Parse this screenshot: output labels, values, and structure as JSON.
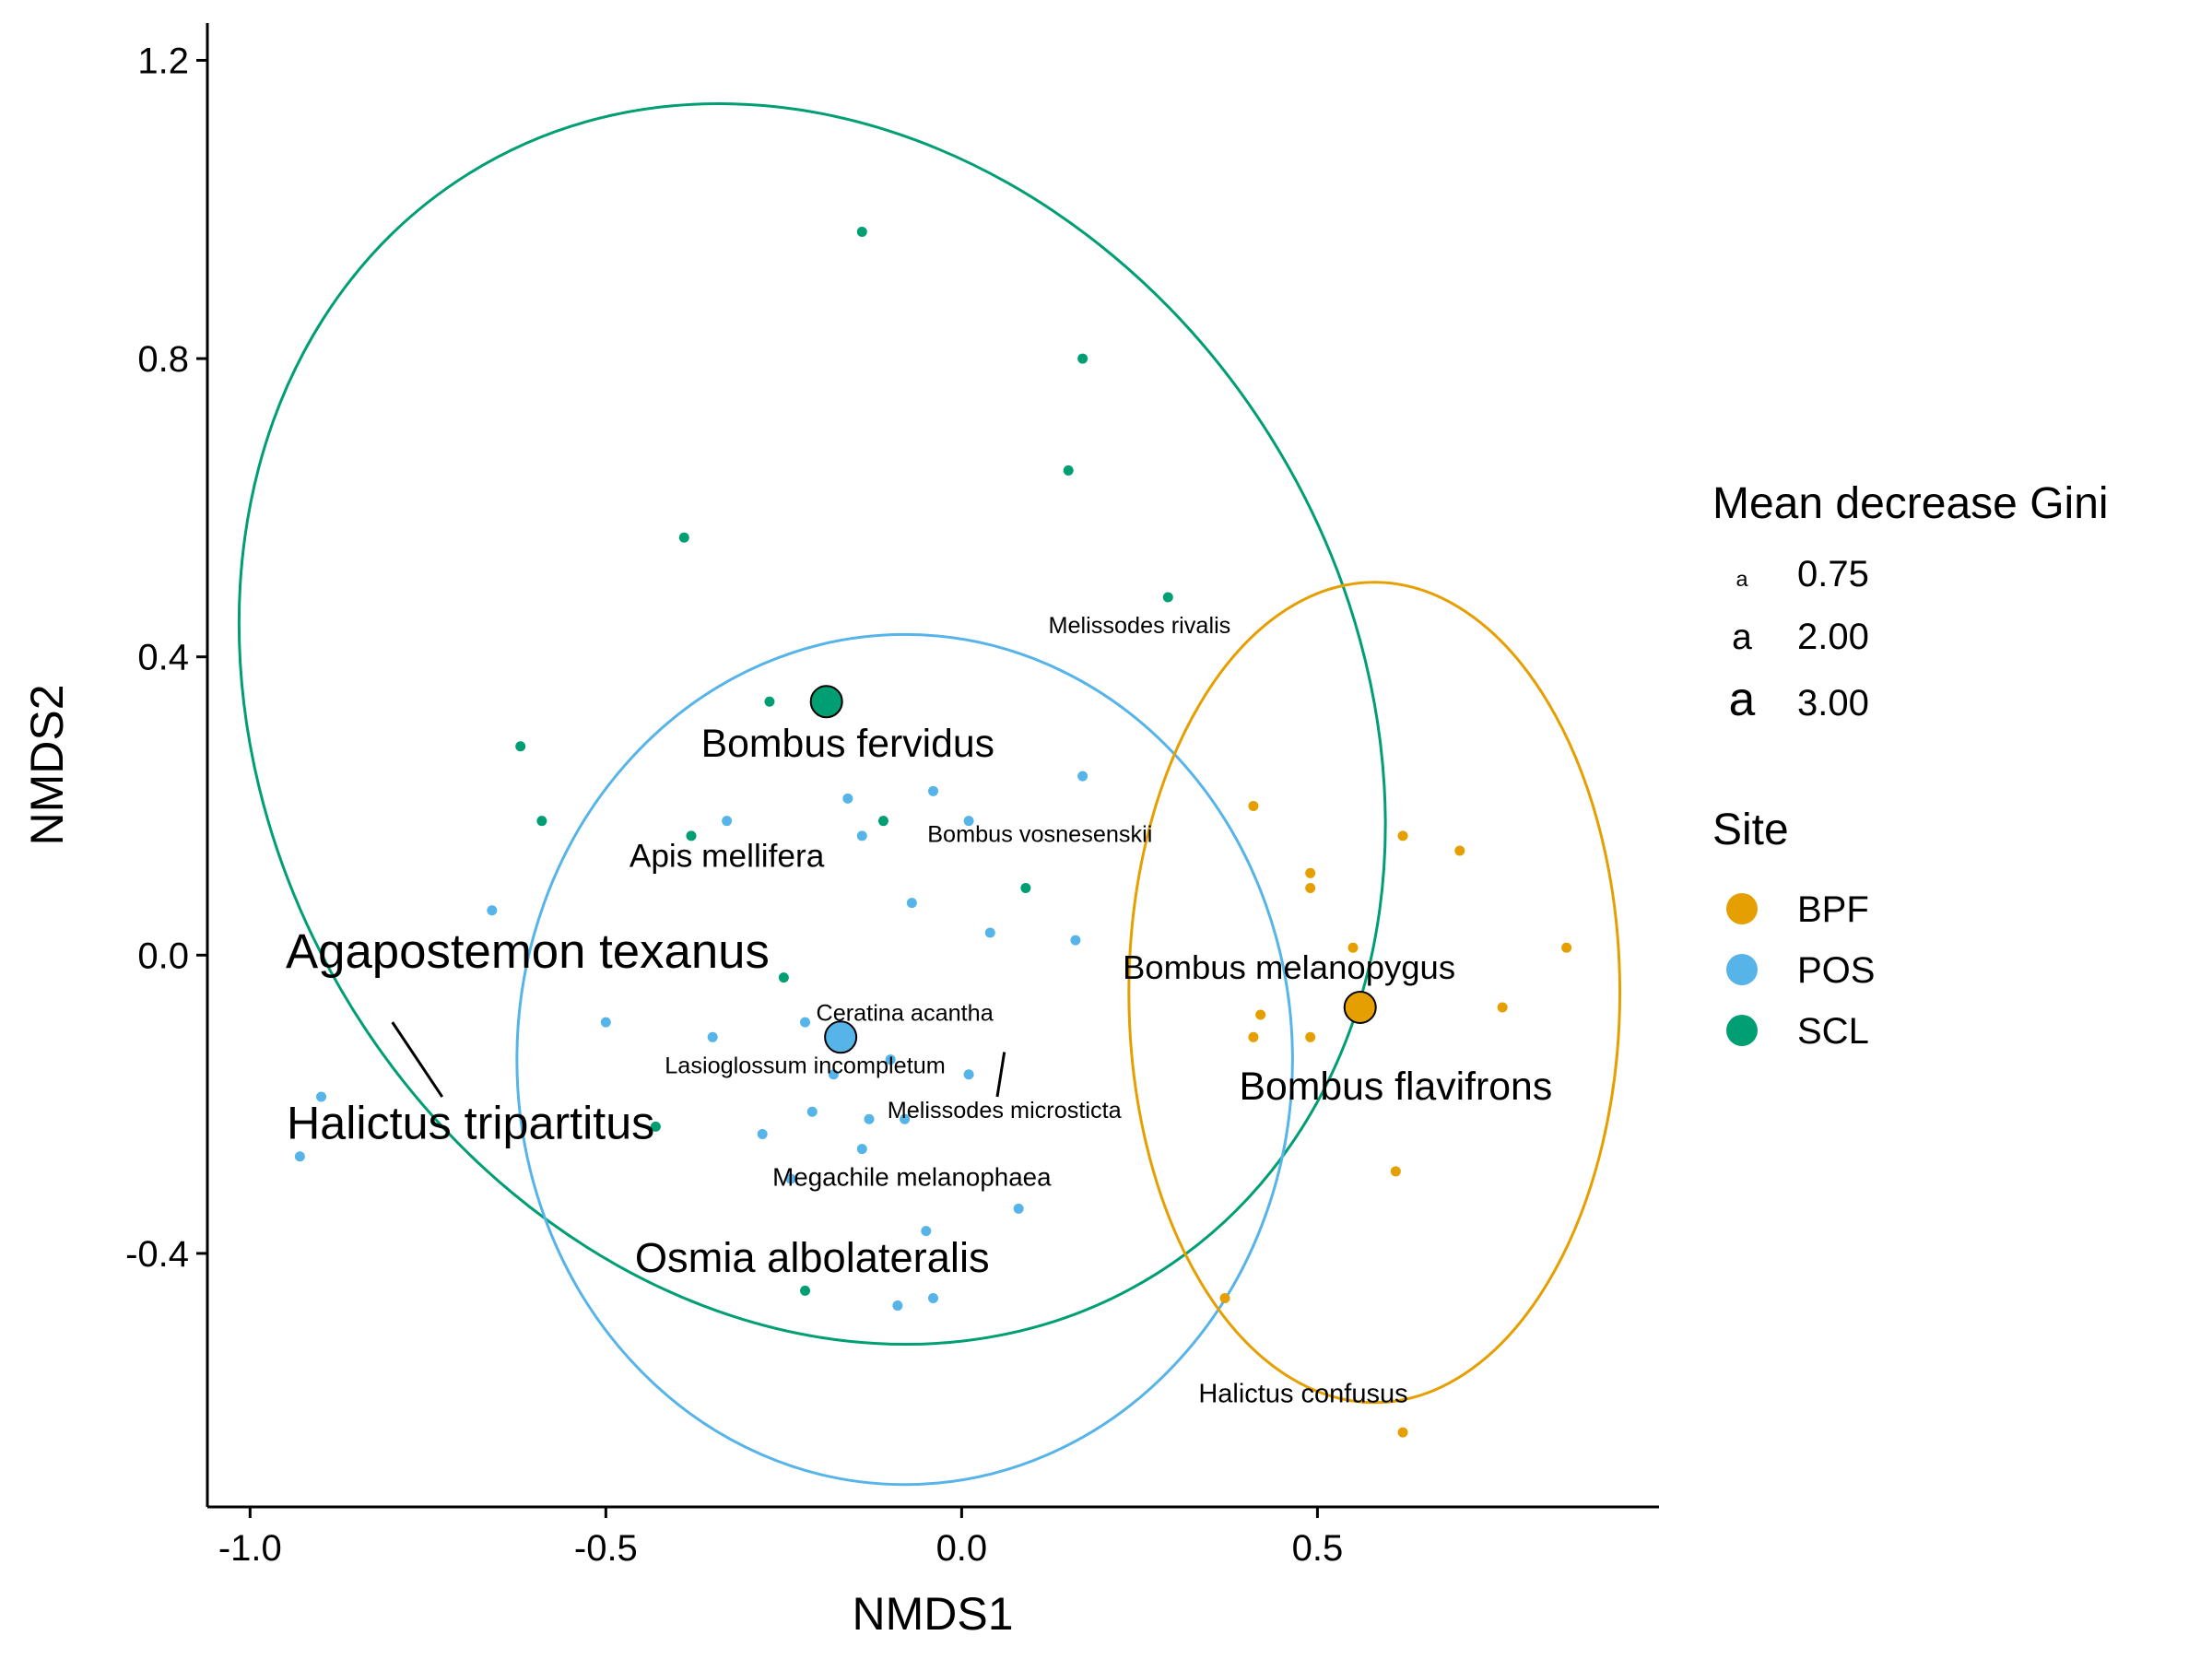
{
  "chart_data": {
    "type": "scatter",
    "title": "",
    "xlabel": "NMDS1",
    "ylabel": "NMDS2",
    "xlim": [
      -1.06,
      0.98
    ],
    "ylim": [
      -0.74,
      1.25
    ],
    "x_ticks": [
      -1.0,
      -0.5,
      0.0,
      0.5
    ],
    "x_tick_labels": [
      "-1.0",
      "-0.5",
      "0.0",
      "0.5"
    ],
    "y_ticks": [
      -0.4,
      0.0,
      0.4,
      0.8,
      1.2
    ],
    "y_tick_labels": [
      "-0.4",
      "0.0",
      "0.4",
      "0.8",
      "1.2"
    ],
    "grid": false,
    "legend_placement": "right",
    "legend": {
      "size_title": "Mean decrease Gini",
      "size_entries": [
        {
          "label": "0.75",
          "value": 0.75,
          "glyph": "a"
        },
        {
          "label": "2.00",
          "value": 2.0,
          "glyph": "a"
        },
        {
          "label": "3.00",
          "value": 3.0,
          "glyph": "a"
        }
      ],
      "color_title": "Site",
      "color_entries": [
        {
          "label": "BPF",
          "color": "#E69F00"
        },
        {
          "label": "POS",
          "color": "#56B4E9"
        },
        {
          "label": "SCL",
          "color": "#009E73"
        }
      ]
    },
    "series": [
      {
        "name": "SCL",
        "color": "#009E73",
        "points": [
          {
            "x": -0.14,
            "y": 0.97
          },
          {
            "x": 0.17,
            "y": 0.8
          },
          {
            "x": 0.15,
            "y": 0.65
          },
          {
            "x": -0.39,
            "y": 0.56
          },
          {
            "x": 0.29,
            "y": 0.48
          },
          {
            "x": -0.27,
            "y": 0.34
          },
          {
            "x": -0.62,
            "y": 0.28
          },
          {
            "x": -0.59,
            "y": 0.18
          },
          {
            "x": -0.38,
            "y": 0.16
          },
          {
            "x": -0.11,
            "y": 0.18
          },
          {
            "x": 0.09,
            "y": 0.09
          },
          {
            "x": -0.25,
            "y": -0.03
          },
          {
            "x": -0.43,
            "y": -0.23
          },
          {
            "x": -0.22,
            "y": -0.45
          }
        ],
        "centroid": {
          "x": -0.19,
          "y": 0.34
        },
        "ellipse": {
          "cx": -0.21,
          "cy": 0.31,
          "rx": 0.76,
          "ry": 0.87,
          "angle_deg": 32
        }
      },
      {
        "name": "POS",
        "color": "#56B4E9",
        "points": [
          {
            "x": -0.16,
            "y": 0.21
          },
          {
            "x": -0.04,
            "y": 0.22
          },
          {
            "x": 0.17,
            "y": 0.24
          },
          {
            "x": -0.33,
            "y": 0.18
          },
          {
            "x": -0.14,
            "y": 0.16
          },
          {
            "x": 0.01,
            "y": 0.18
          },
          {
            "x": -0.07,
            "y": 0.07
          },
          {
            "x": -0.66,
            "y": 0.06
          },
          {
            "x": 0.04,
            "y": 0.03
          },
          {
            "x": 0.16,
            "y": 0.02
          },
          {
            "x": -0.5,
            "y": -0.09
          },
          {
            "x": -0.35,
            "y": -0.11
          },
          {
            "x": -0.22,
            "y": -0.09
          },
          {
            "x": -0.18,
            "y": -0.16
          },
          {
            "x": -0.1,
            "y": -0.14
          },
          {
            "x": 0.01,
            "y": -0.16
          },
          {
            "x": -0.21,
            "y": -0.21
          },
          {
            "x": -0.13,
            "y": -0.22
          },
          {
            "x": -0.28,
            "y": -0.24
          },
          {
            "x": -0.14,
            "y": -0.26
          },
          {
            "x": -0.08,
            "y": -0.22
          },
          {
            "x": -0.9,
            "y": -0.19
          },
          {
            "x": -0.93,
            "y": -0.27
          },
          {
            "x": -0.24,
            "y": -0.3
          },
          {
            "x": 0.08,
            "y": -0.34
          },
          {
            "x": -0.05,
            "y": -0.37
          },
          {
            "x": -0.09,
            "y": -0.47
          },
          {
            "x": -0.04,
            "y": -0.46
          }
        ],
        "centroid": {
          "x": -0.17,
          "y": -0.11
        },
        "ellipse": {
          "cx": -0.08,
          "cy": -0.14,
          "rx": 0.545,
          "ry": 0.57,
          "angle_deg": 0
        }
      },
      {
        "name": "BPF",
        "color": "#E69F00",
        "points": [
          {
            "x": 0.41,
            "y": 0.2
          },
          {
            "x": 0.62,
            "y": 0.16
          },
          {
            "x": 0.7,
            "y": 0.14
          },
          {
            "x": 0.49,
            "y": 0.11
          },
          {
            "x": 0.49,
            "y": 0.09
          },
          {
            "x": 0.85,
            "y": 0.01
          },
          {
            "x": 0.55,
            "y": 0.01
          },
          {
            "x": 0.42,
            "y": -0.08
          },
          {
            "x": 0.41,
            "y": -0.11
          },
          {
            "x": 0.49,
            "y": -0.11
          },
          {
            "x": 0.76,
            "y": -0.07
          },
          {
            "x": 0.61,
            "y": -0.29
          },
          {
            "x": 0.37,
            "y": -0.46
          },
          {
            "x": 0.62,
            "y": -0.64
          }
        ],
        "centroid": {
          "x": 0.56,
          "y": -0.07
        },
        "ellipse": {
          "cx": 0.58,
          "cy": -0.05,
          "rx": 0.345,
          "ry": 0.55,
          "angle_deg": 0
        }
      }
    ],
    "species_labels": [
      {
        "text": "Melissodes rivalis",
        "x": 0.25,
        "y": 0.44,
        "gini": 0.9
      },
      {
        "text": "Bombus fervidus",
        "x": -0.16,
        "y": 0.28,
        "gini": 2.3
      },
      {
        "text": "Bombus vosnesenskii",
        "x": 0.11,
        "y": 0.16,
        "gini": 0.9
      },
      {
        "text": "Apis mellifera",
        "x": -0.33,
        "y": 0.13,
        "gini": 1.7
      },
      {
        "text": "Agapostemon texanus",
        "x": -0.61,
        "y": 0.0,
        "gini": 3.1
      },
      {
        "text": "Bombus melanopygus",
        "x": 0.46,
        "y": -0.02,
        "gini": 1.8
      },
      {
        "text": "Ceratina acantha",
        "x": -0.08,
        "y": -0.08,
        "gini": 0.9
      },
      {
        "text": "Lasioglossum incompletum",
        "x": -0.22,
        "y": -0.15,
        "gini": 0.9
      },
      {
        "text": "Halictus tripartitus",
        "x": -0.69,
        "y": -0.23,
        "gini": 2.9
      },
      {
        "text": "Bombus flavifrons",
        "x": 0.61,
        "y": -0.18,
        "gini": 2.3
      },
      {
        "text": "Melissodes microsticta",
        "x": 0.06,
        "y": -0.21,
        "gini": 0.9
      },
      {
        "text": "Megachile melanophaea",
        "x": -0.07,
        "y": -0.3,
        "gini": 1.1
      },
      {
        "text": "Osmia albolateralis",
        "x": -0.21,
        "y": -0.41,
        "gini": 2.5
      },
      {
        "text": "Halictus confusus",
        "x": 0.48,
        "y": -0.59,
        "gini": 1.2
      }
    ],
    "label_segments": [
      {
        "x1": -0.8,
        "y1": -0.09,
        "x2": -0.73,
        "y2": -0.19
      },
      {
        "x1": 0.06,
        "y1": -0.13,
        "x2": 0.05,
        "y2": -0.19
      }
    ]
  }
}
